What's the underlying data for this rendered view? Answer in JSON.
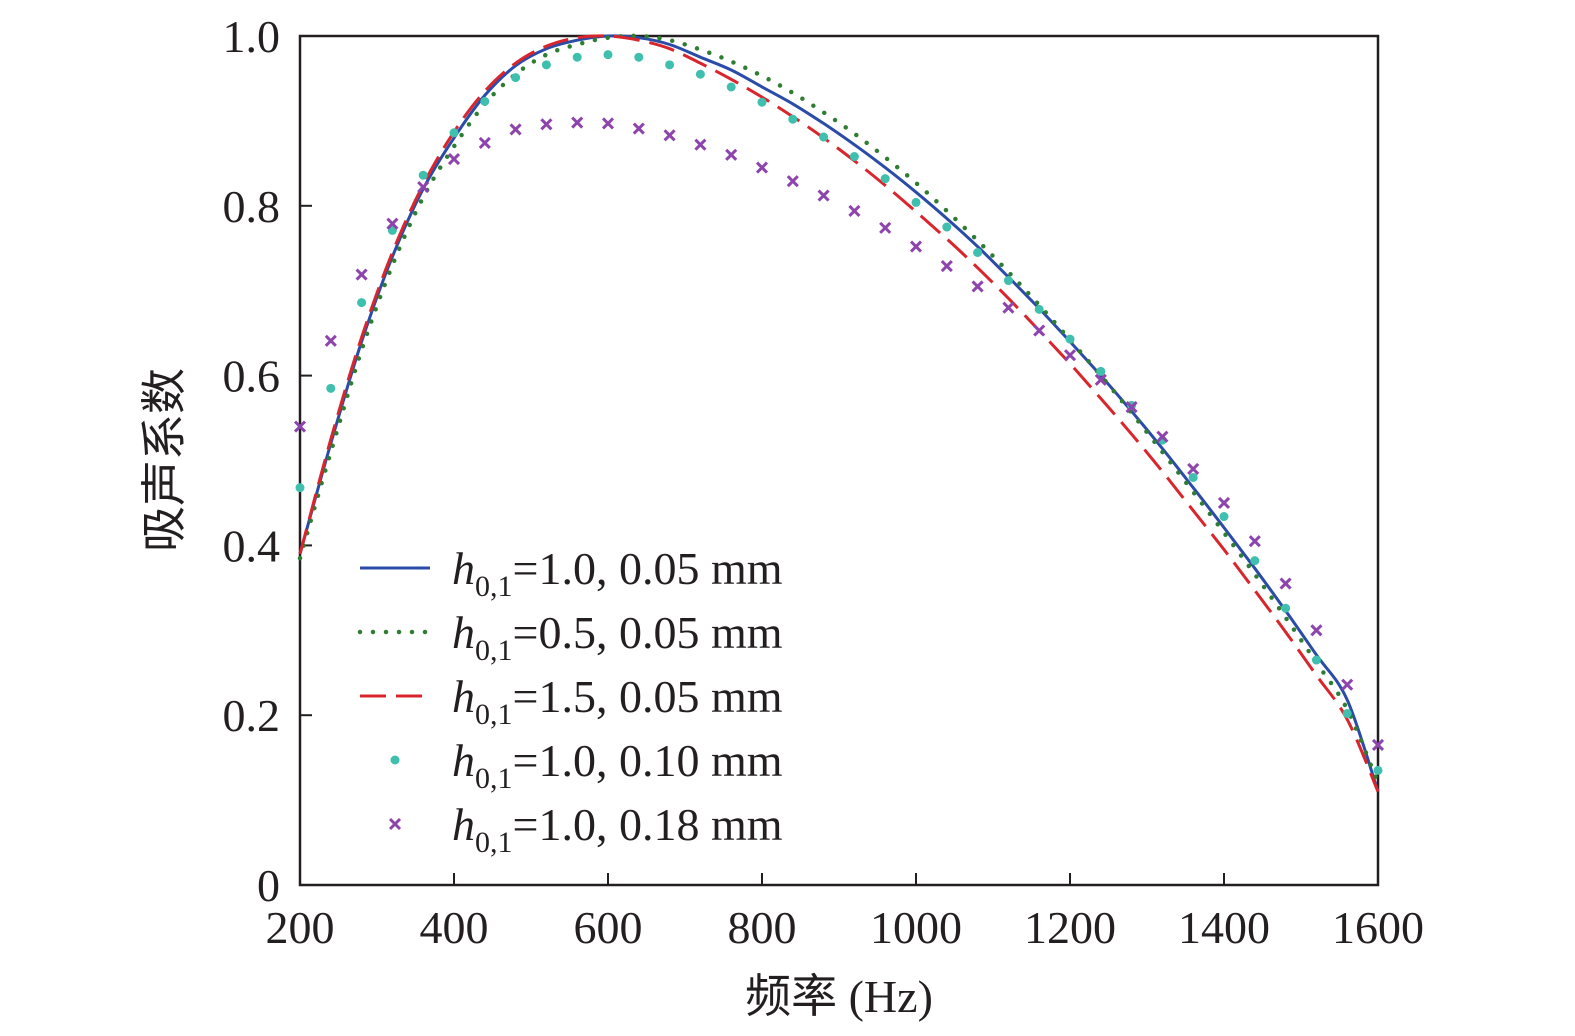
{
  "chart_data": {
    "type": "line",
    "xlabel": "频率 (Hz)",
    "ylabel": "吸声系数",
    "xlim": [
      200,
      1600
    ],
    "ylim": [
      0,
      1.0
    ],
    "xticks": [
      200,
      400,
      600,
      800,
      1000,
      1200,
      1400,
      1600
    ],
    "yticks": [
      0,
      0.2,
      0.4,
      0.6,
      0.8,
      1.0
    ],
    "x_tick_labels": [
      "200",
      "400",
      "600",
      "800",
      "1000",
      "1200",
      "1400",
      "1600"
    ],
    "y_tick_labels": [
      "0",
      "0.2",
      "0.4",
      "0.6",
      "0.8",
      "1.0"
    ],
    "grid": false,
    "legend_position": "lower-left",
    "x": [
      200,
      240,
      280,
      320,
      360,
      400,
      440,
      480,
      520,
      560,
      600,
      640,
      680,
      720,
      760,
      800,
      840,
      880,
      920,
      960,
      1000,
      1040,
      1080,
      1120,
      1160,
      1200,
      1240,
      1280,
      1320,
      1360,
      1400,
      1440,
      1480,
      1520,
      1560,
      1600
    ],
    "series": [
      {
        "name": "h0,1=1.0, 0.05 mm",
        "legend": {
          "symbol": "h",
          "subscript": "0,1",
          "text": "=1.0, 0.05 mm"
        },
        "style": "solid",
        "color": "#2b4ba8",
        "values": [
          0.39,
          0.52,
          0.64,
          0.74,
          0.82,
          0.88,
          0.93,
          0.965,
          0.985,
          0.995,
          1.0,
          0.998,
          0.99,
          0.975,
          0.96,
          0.94,
          0.92,
          0.897,
          0.872,
          0.845,
          0.816,
          0.785,
          0.752,
          0.716,
          0.679,
          0.64,
          0.6,
          0.558,
          0.514,
          0.468,
          0.421,
          0.373,
          0.323,
          0.271,
          0.218,
          0.11
        ]
      },
      {
        "name": "h0,1=0.5, 0.05 mm",
        "legend": {
          "symbol": "h",
          "subscript": "0,1",
          "text": "=0.5, 0.05 mm"
        },
        "style": "dotted",
        "color": "#2e7d32",
        "values": [
          0.385,
          0.51,
          0.63,
          0.73,
          0.81,
          0.87,
          0.92,
          0.955,
          0.978,
          0.99,
          0.998,
          1.0,
          0.995,
          0.984,
          0.97,
          0.953,
          0.933,
          0.91,
          0.885,
          0.857,
          0.827,
          0.794,
          0.759,
          0.722,
          0.683,
          0.642,
          0.6,
          0.556,
          0.51,
          0.463,
          0.415,
          0.366,
          0.315,
          0.262,
          0.207,
          0.12
        ]
      },
      {
        "name": "h0,1=1.5, 0.05 mm",
        "legend": {
          "symbol": "h",
          "subscript": "0,1",
          "text": "=1.5, 0.05 mm"
        },
        "style": "dashed",
        "color": "#d9262d",
        "values": [
          0.39,
          0.525,
          0.645,
          0.745,
          0.825,
          0.887,
          0.935,
          0.968,
          0.988,
          0.998,
          1.0,
          0.995,
          0.985,
          0.968,
          0.949,
          0.928,
          0.905,
          0.88,
          0.853,
          0.824,
          0.793,
          0.761,
          0.727,
          0.691,
          0.653,
          0.614,
          0.573,
          0.531,
          0.487,
          0.441,
          0.395,
          0.347,
          0.298,
          0.247,
          0.195,
          0.11
        ]
      },
      {
        "name": "h0,1=1.0, 0.10 mm",
        "legend": {
          "symbol": "h",
          "subscript": "0,1",
          "text": "=1.0, 0.10 mm"
        },
        "style": "dot-marker",
        "color": "#3fbfad",
        "values": [
          0.468,
          0.585,
          0.686,
          0.771,
          0.836,
          0.886,
          0.923,
          0.951,
          0.966,
          0.975,
          0.978,
          0.975,
          0.966,
          0.955,
          0.94,
          0.922,
          0.902,
          0.881,
          0.858,
          0.832,
          0.804,
          0.775,
          0.745,
          0.712,
          0.678,
          0.643,
          0.605,
          0.565,
          0.524,
          0.48,
          0.434,
          0.382,
          0.326,
          0.265,
          0.202,
          0.135
        ]
      },
      {
        "name": "h0,1=1.0, 0.18 mm",
        "legend": {
          "symbol": "h",
          "subscript": "0,1",
          "text": "=1.0, 0.18 mm"
        },
        "style": "x-marker",
        "color": "#8e44ad",
        "values": [
          0.54,
          0.641,
          0.719,
          0.779,
          0.822,
          0.855,
          0.874,
          0.89,
          0.896,
          0.898,
          0.897,
          0.891,
          0.883,
          0.872,
          0.86,
          0.845,
          0.829,
          0.812,
          0.794,
          0.774,
          0.752,
          0.729,
          0.705,
          0.68,
          0.653,
          0.624,
          0.595,
          0.563,
          0.528,
          0.49,
          0.45,
          0.405,
          0.355,
          0.3,
          0.236,
          0.165
        ]
      }
    ]
  }
}
